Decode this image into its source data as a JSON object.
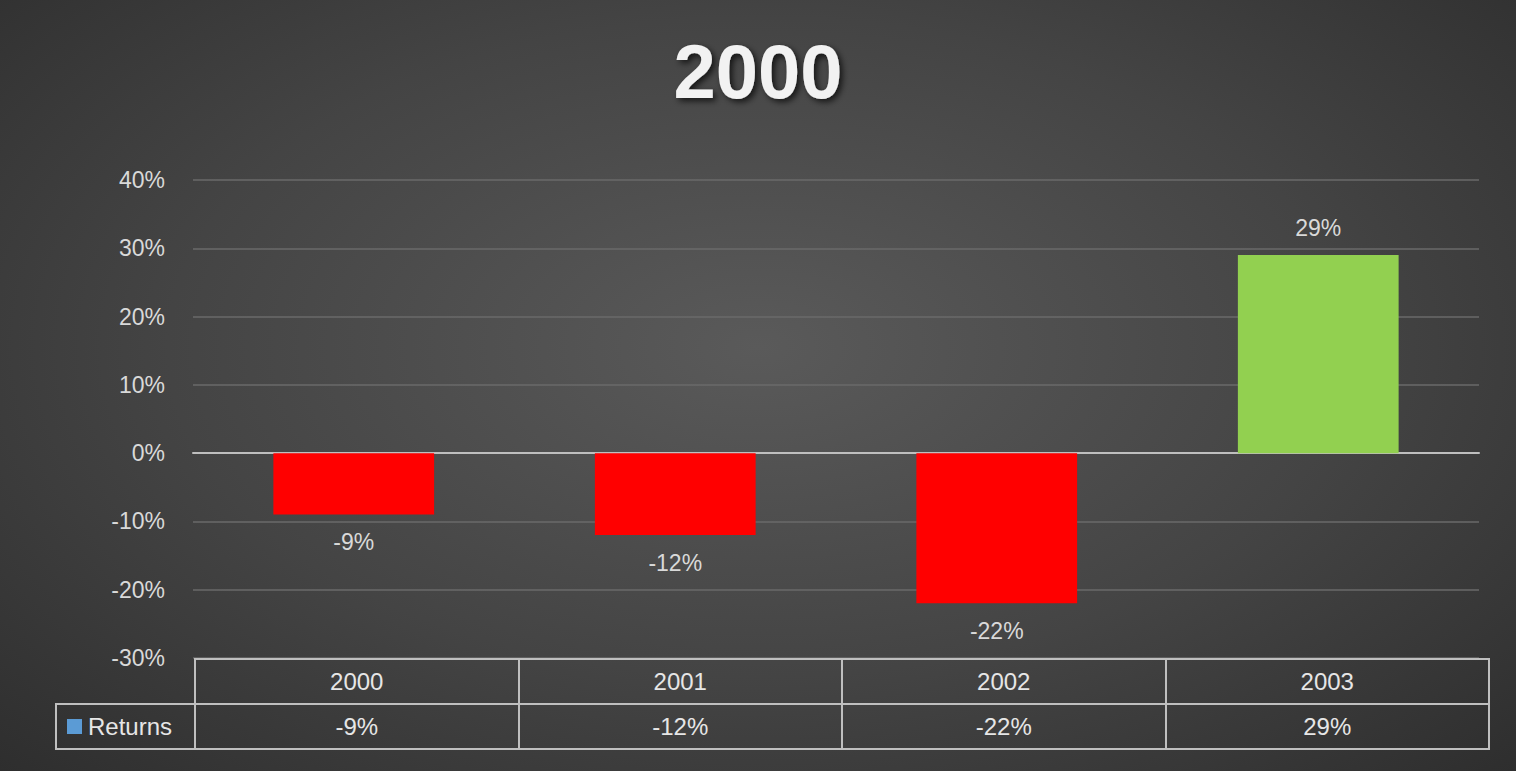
{
  "chart_data": {
    "type": "bar",
    "title": "2000",
    "categories": [
      "2000",
      "2001",
      "2002",
      "2003"
    ],
    "series": [
      {
        "name": "Returns",
        "values": [
          -9,
          -12,
          -22,
          29
        ],
        "value_labels": [
          "-9%",
          "-12%",
          "-22%",
          "29%"
        ],
        "colors": [
          "#ff0000",
          "#ff0000",
          "#ff0000",
          "#92d050"
        ]
      }
    ],
    "ylim": [
      -30,
      40
    ],
    "yticks": [
      {
        "value": -30,
        "label": "-30%"
      },
      {
        "value": -20,
        "label": "-20%"
      },
      {
        "value": -10,
        "label": "-10%"
      },
      {
        "value": 0,
        "label": "0%"
      },
      {
        "value": 10,
        "label": "10%"
      },
      {
        "value": 20,
        "label": "20%"
      },
      {
        "value": 30,
        "label": "30%"
      },
      {
        "value": 40,
        "label": "40%"
      }
    ],
    "grid": true,
    "data_labels": true
  }
}
